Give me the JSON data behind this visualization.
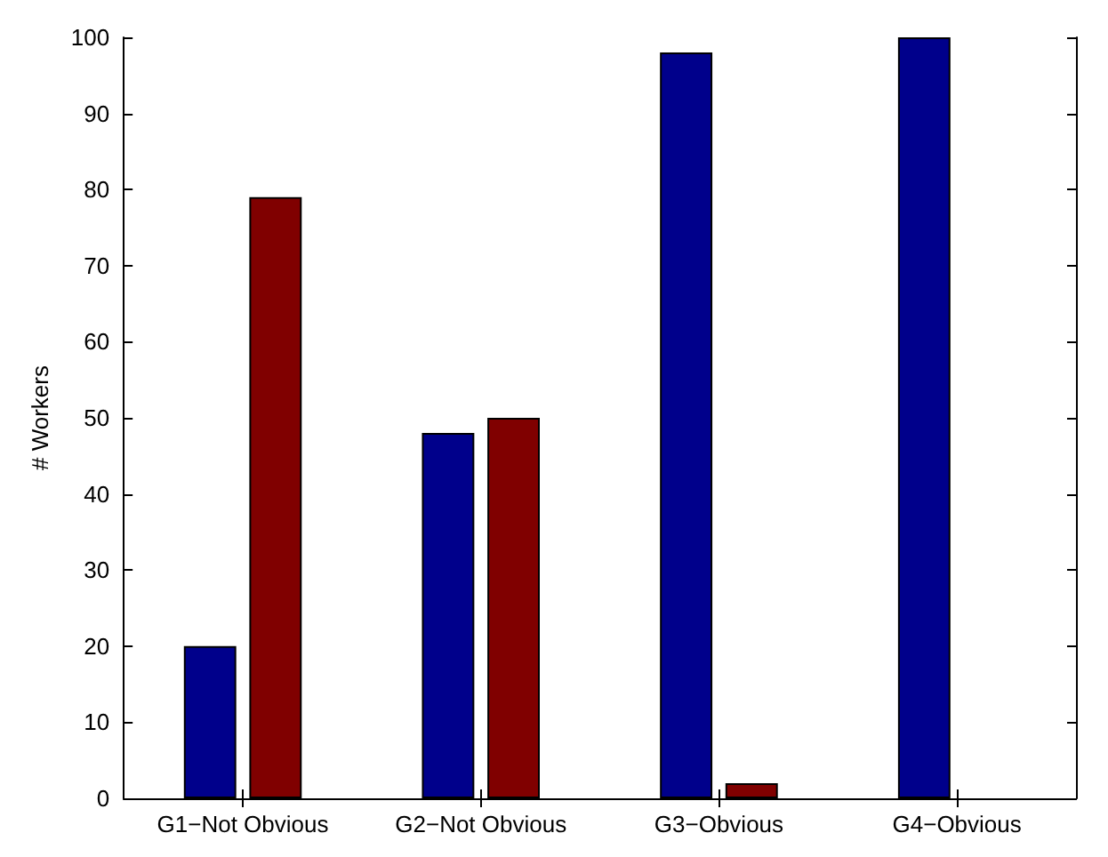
{
  "chart_data": {
    "type": "bar",
    "ylabel": "# Workers",
    "categories": [
      "G1−Not Obvious",
      "G2−Not Obvious",
      "G3−Obvious",
      "G4−Obvious"
    ],
    "series": [
      {
        "color": "#00008b",
        "values": [
          20,
          48,
          98,
          100
        ]
      },
      {
        "color": "#800000",
        "values": [
          79,
          50,
          2,
          null
        ]
      }
    ],
    "ylim": [
      0,
      100
    ],
    "yticks": [
      0,
      10,
      20,
      30,
      40,
      50,
      60,
      70,
      80,
      90,
      100
    ],
    "grid": false
  }
}
